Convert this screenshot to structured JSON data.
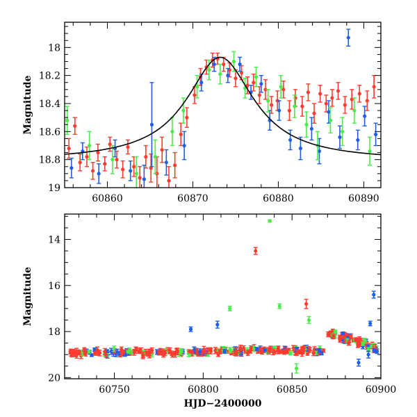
{
  "chart_data": [
    {
      "type": "scatter",
      "title": "",
      "xlabel": "",
      "ylabel": "Magnitude",
      "xlim": [
        60855,
        60892
      ],
      "ylim": [
        19.0,
        17.82
      ],
      "y_inverted": true,
      "xticks": [
        60860,
        60870,
        60880,
        60890
      ],
      "yticks": [
        18,
        18.2,
        18.4,
        18.6,
        18.8,
        19
      ],
      "colors": {
        "red": "#ff3c2f",
        "blue": "#1f5fe6",
        "green": "#4cea4c",
        "curve": "#000000"
      },
      "model_curve": {
        "peak_x": 60873.2,
        "peak_mag": 18.07,
        "baseline_mag": 18.81,
        "width": 4.8
      },
      "series": [
        {
          "color": "red",
          "points": [
            [
              60855.5,
              18.72,
              0.07
            ],
            [
              60856.2,
              18.56,
              0.06
            ],
            [
              60856.8,
              18.82,
              0.06
            ],
            [
              60857.6,
              18.78,
              0.07
            ],
            [
              60858.3,
              18.88,
              0.06
            ],
            [
              60858.9,
              18.75,
              0.06
            ],
            [
              60859.7,
              18.83,
              0.05
            ],
            [
              60860.3,
              18.69,
              0.05
            ],
            [
              60861.1,
              18.8,
              0.06
            ],
            [
              60861.8,
              18.87,
              0.06
            ],
            [
              60862.4,
              18.71,
              0.05
            ],
            [
              60863.1,
              18.85,
              0.07
            ],
            [
              60863.8,
              18.93,
              0.08
            ],
            [
              60864.5,
              18.78,
              0.08
            ],
            [
              60865.1,
              18.86,
              0.1
            ],
            [
              60865.8,
              18.9,
              0.12
            ],
            [
              60866.4,
              18.73,
              0.09
            ],
            [
              60867.2,
              18.95,
              0.1
            ],
            [
              60867.9,
              18.84,
              0.09
            ],
            [
              60868.6,
              18.62,
              0.08
            ],
            [
              60869.3,
              18.5,
              0.07
            ],
            [
              60870.2,
              18.34,
              0.06
            ],
            [
              60870.9,
              18.21,
              0.06
            ],
            [
              60871.6,
              18.14,
              0.05
            ],
            [
              60872.3,
              18.09,
              0.05
            ],
            [
              60872.9,
              18.08,
              0.04
            ],
            [
              60873.6,
              18.12,
              0.05
            ],
            [
              60874.3,
              18.16,
              0.05
            ],
            [
              60875.0,
              18.22,
              0.06
            ],
            [
              60875.7,
              18.18,
              0.05
            ],
            [
              60876.4,
              18.27,
              0.06
            ],
            [
              60877.1,
              18.25,
              0.06
            ],
            [
              60877.8,
              18.34,
              0.06
            ],
            [
              60878.5,
              18.3,
              0.07
            ],
            [
              60879.2,
              18.41,
              0.06
            ],
            [
              60879.9,
              18.38,
              0.07
            ],
            [
              60880.6,
              18.3,
              0.06
            ],
            [
              60881.3,
              18.45,
              0.07
            ],
            [
              60882.0,
              18.36,
              0.06
            ],
            [
              60882.8,
              18.42,
              0.07
            ],
            [
              60883.5,
              18.32,
              0.06
            ],
            [
              60884.2,
              18.47,
              0.07
            ],
            [
              60884.9,
              18.33,
              0.06
            ],
            [
              60885.6,
              18.4,
              0.06
            ],
            [
              60886.3,
              18.36,
              0.06
            ],
            [
              60887.0,
              18.31,
              0.06
            ],
            [
              60887.8,
              18.41,
              0.06
            ],
            [
              60888.6,
              18.37,
              0.07
            ],
            [
              60889.5,
              18.33,
              0.06
            ],
            [
              60890.4,
              18.38,
              0.07
            ],
            [
              60891.2,
              18.28,
              0.08
            ]
          ]
        },
        {
          "color": "blue",
          "points": [
            [
              60855.8,
              18.86,
              0.07
            ],
            [
              60857.1,
              18.74,
              0.06
            ],
            [
              60859.0,
              18.9,
              0.07
            ],
            [
              60860.9,
              18.72,
              0.06
            ],
            [
              60862.7,
              18.88,
              0.07
            ],
            [
              60864.3,
              18.94,
              0.1
            ],
            [
              60865.2,
              18.55,
              0.3
            ],
            [
              60866.9,
              18.82,
              0.09
            ],
            [
              60869.0,
              18.7,
              0.1
            ],
            [
              60871.0,
              18.25,
              0.06
            ],
            [
              60872.5,
              18.12,
              0.05
            ],
            [
              60874.1,
              18.2,
              0.05
            ],
            [
              60875.5,
              18.12,
              0.05
            ],
            [
              60876.8,
              18.32,
              0.05
            ],
            [
              60878.0,
              18.26,
              0.06
            ],
            [
              60879.0,
              18.52,
              0.07
            ],
            [
              60880.1,
              18.45,
              0.07
            ],
            [
              60881.4,
              18.66,
              0.07
            ],
            [
              60882.6,
              18.72,
              0.08
            ],
            [
              60883.9,
              18.58,
              0.08
            ],
            [
              60884.8,
              18.74,
              0.09
            ],
            [
              60885.9,
              18.46,
              0.08
            ],
            [
              60887.2,
              18.64,
              0.08
            ],
            [
              60888.2,
              17.93,
              0.06
            ],
            [
              60889.3,
              18.66,
              0.07
            ],
            [
              60890.1,
              18.49,
              0.07
            ],
            [
              60891.4,
              18.62,
              0.08
            ]
          ]
        },
        {
          "color": "green",
          "points": [
            [
              60855.3,
              18.52,
              0.1
            ],
            [
              60857.9,
              18.7,
              0.1
            ],
            [
              60860.6,
              18.8,
              0.1
            ],
            [
              60863.4,
              18.9,
              0.12
            ],
            [
              60865.6,
              18.78,
              0.12
            ],
            [
              60867.6,
              18.6,
              0.1
            ],
            [
              60868.9,
              18.45,
              0.09
            ],
            [
              60870.5,
              18.28,
              0.08
            ],
            [
              60871.9,
              18.16,
              0.07
            ],
            [
              60873.2,
              18.19,
              0.07
            ],
            [
              60874.8,
              18.1,
              0.07
            ],
            [
              60876.1,
              18.29,
              0.07
            ],
            [
              60877.4,
              18.21,
              0.07
            ],
            [
              60878.8,
              18.38,
              0.08
            ],
            [
              60880.3,
              18.28,
              0.08
            ],
            [
              60881.9,
              18.42,
              0.08
            ],
            [
              60883.3,
              18.55,
              0.09
            ],
            [
              60884.6,
              18.7,
              0.1
            ],
            [
              60886.1,
              18.52,
              0.09
            ],
            [
              60887.5,
              18.6,
              0.1
            ],
            [
              60888.9,
              18.45,
              0.09
            ],
            [
              60890.7,
              18.74,
              0.1
            ]
          ]
        }
      ]
    },
    {
      "type": "scatter",
      "title": "",
      "xlabel": "HJD−2400000",
      "ylabel": "Magnitude",
      "xlim": [
        60722,
        60900
      ],
      "ylim": [
        20.05,
        12.9
      ],
      "y_inverted": true,
      "xticks": [
        60750,
        60800,
        60850,
        60900
      ],
      "yticks": [
        14,
        16,
        18,
        20
      ],
      "baseline": {
        "x_start": 60725,
        "x_end": 60868,
        "mag_start": 18.92,
        "mag_end": 18.82,
        "scatter": 0.12
      },
      "outburst": {
        "x_start": 60869,
        "x_end": 60898,
        "peak_mag": 18.0,
        "end_mag": 18.75
      },
      "colors": {
        "red": "#ff3c2f",
        "blue": "#1f5fe6",
        "green": "#4cea4c"
      },
      "outliers": [
        {
          "color": "red",
          "x": 60829.5,
          "mag": 14.5,
          "err": 0.15
        },
        {
          "color": "green",
          "x": 60837.5,
          "mag": 13.2,
          "err": 0.05
        },
        {
          "color": "green",
          "x": 60843.0,
          "mag": 16.9,
          "err": 0.1
        },
        {
          "color": "red",
          "x": 60858.0,
          "mag": 16.8,
          "err": 0.2
        },
        {
          "color": "green",
          "x": 60859.5,
          "mag": 17.5,
          "err": 0.15
        },
        {
          "color": "green",
          "x": 60815.0,
          "mag": 17.0,
          "err": 0.1
        },
        {
          "color": "blue",
          "x": 60808.0,
          "mag": 17.7,
          "err": 0.15
        },
        {
          "color": "blue",
          "x": 60793.0,
          "mag": 17.9,
          "err": 0.1
        },
        {
          "color": "blue",
          "x": 60896.0,
          "mag": 16.4,
          "err": 0.15
        },
        {
          "color": "blue",
          "x": 60894.0,
          "mag": 17.65,
          "err": 0.1
        },
        {
          "color": "green",
          "x": 60852.5,
          "mag": 19.6,
          "err": 0.2
        },
        {
          "color": "blue",
          "x": 60887.5,
          "mag": 19.35,
          "err": 0.15
        },
        {
          "color": "blue",
          "x": 60893.0,
          "mag": 19.0,
          "err": 0.15
        }
      ]
    }
  ]
}
